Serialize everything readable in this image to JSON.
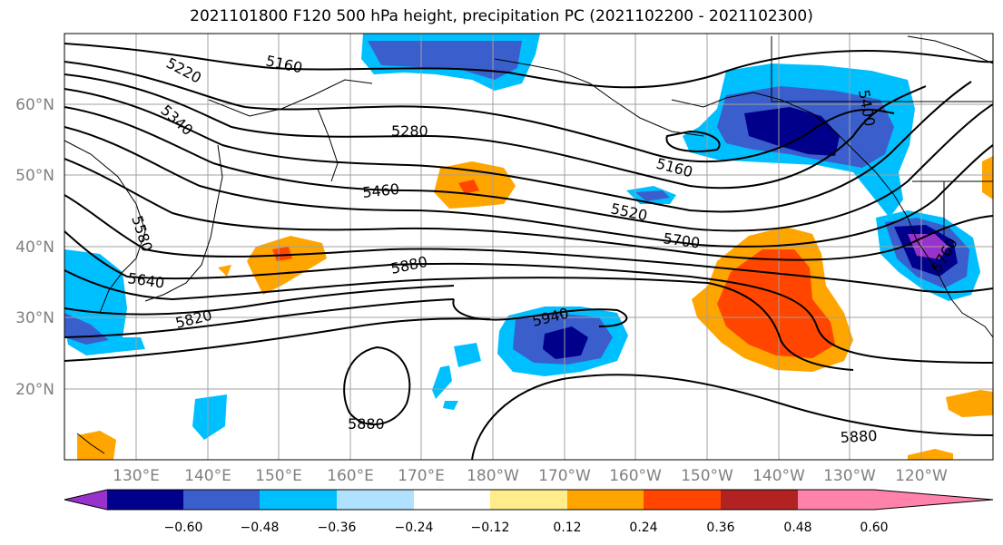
{
  "title": "2021101800 F120 500 hPa height, precipitation PC (2021102200 - 2021102300)",
  "map": {
    "lat_labels": [
      "60°N",
      "50°N",
      "40°N",
      "30°N",
      "20°N"
    ],
    "lon_labels": [
      "130°E",
      "140°E",
      "150°E",
      "160°E",
      "170°E",
      "180°W",
      "170°W",
      "160°W",
      "150°W",
      "140°W",
      "130°W",
      "120°W"
    ],
    "contour_labels": [
      "5220",
      "5160",
      "5340",
      "5280",
      "5160",
      "5400",
      "5460",
      "5520",
      "5700",
      "5880",
      "5580",
      "5640",
      "5820",
      "5940",
      "5880",
      "5880",
      "5760"
    ]
  },
  "colorbar": {
    "ticks": [
      "−0.60",
      "−0.48",
      "−0.36",
      "−0.24",
      "−0.12",
      "0.12",
      "0.24",
      "0.36",
      "0.48",
      "0.60"
    ],
    "colors": [
      "#9932cc",
      "#00008b",
      "#3a5fcd",
      "#00bfff",
      "#b0e2ff",
      "#ffffff",
      "#ffec8b",
      "#ffa500",
      "#ff4500",
      "#b22222",
      "#ff82ab"
    ]
  },
  "colors": {
    "grid": "#a0a0a0",
    "contour": "#000000"
  }
}
